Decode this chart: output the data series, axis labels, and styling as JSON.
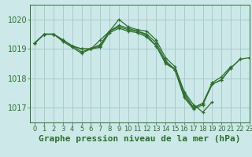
{
  "bg_color": "#cce8e8",
  "grid_color": "#aacccc",
  "line_color": "#2d6e2d",
  "marker_color": "#2d6e2d",
  "title": "Graphe pression niveau de la mer (hPa)",
  "xlim": [
    -0.5,
    23
  ],
  "ylim": [
    1016.5,
    1020.5
  ],
  "yticks": [
    1017,
    1018,
    1019,
    1020
  ],
  "xticks": [
    0,
    1,
    2,
    3,
    4,
    5,
    6,
    7,
    8,
    9,
    10,
    11,
    12,
    13,
    14,
    15,
    16,
    17,
    18,
    19,
    20,
    21,
    22,
    23
  ],
  "series": [
    [
      1019.2,
      1019.5,
      1019.5,
      1019.3,
      1019.1,
      1019.0,
      1019.0,
      1019.3,
      1019.6,
      1020.0,
      1019.75,
      1019.65,
      1019.6,
      1019.3,
      1018.7,
      1018.4,
      1017.55,
      1017.1,
      1016.85,
      1017.2,
      null,
      null,
      null,
      null
    ],
    [
      1019.2,
      1019.5,
      1019.5,
      1019.3,
      1019.1,
      1019.0,
      1019.0,
      1019.15,
      1019.6,
      1019.8,
      1019.7,
      1019.6,
      1019.5,
      1019.2,
      1018.6,
      1018.3,
      1017.5,
      1017.0,
      1017.15,
      1017.85,
      1018.05,
      1018.4,
      null,
      null
    ],
    [
      1019.2,
      1019.5,
      1019.5,
      1019.3,
      1019.1,
      1018.9,
      1019.0,
      1019.1,
      1019.6,
      1019.75,
      1019.65,
      1019.6,
      1019.45,
      1019.1,
      1018.55,
      1018.3,
      1017.4,
      1017.0,
      1017.15,
      1017.8,
      1017.95,
      1018.35,
      1018.65,
      null
    ],
    [
      1019.2,
      1019.5,
      1019.5,
      1019.25,
      1019.05,
      1018.85,
      1019.0,
      1019.05,
      1019.55,
      1019.7,
      1019.6,
      1019.55,
      1019.4,
      1019.1,
      1018.5,
      1018.3,
      1017.35,
      1016.95,
      1017.1,
      1017.8,
      1017.95,
      1018.35,
      1018.65,
      1018.7
    ]
  ],
  "title_fontsize": 8,
  "tick_fontsize": 6,
  "linewidth": 0.9,
  "markersize": 3.5
}
